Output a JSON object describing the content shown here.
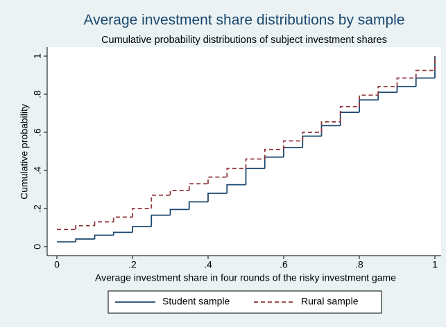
{
  "chart_data": {
    "type": "step",
    "title": "Average investment share distributions by sample",
    "subtitle": "Cumulative probability distributions of subject investment shares",
    "x_label": "Average investment share in four rounds of the risky investment game",
    "y_label": "Cumulative probability",
    "x": [
      0,
      0.05,
      0.1,
      0.15,
      0.2,
      0.25,
      0.3,
      0.35,
      0.4,
      0.45,
      0.5,
      0.55,
      0.6,
      0.65,
      0.7,
      0.75,
      0.8,
      0.85,
      0.9,
      0.95,
      1
    ],
    "series": [
      {
        "name": "Student sample",
        "color": "#1a476f",
        "dash": "solid",
        "values": [
          0.025,
          0.04,
          0.06,
          0.075,
          0.105,
          0.165,
          0.195,
          0.235,
          0.28,
          0.325,
          0.41,
          0.47,
          0.52,
          0.58,
          0.635,
          0.705,
          0.77,
          0.81,
          0.84,
          0.885,
          1
        ]
      },
      {
        "name": "Rural sample",
        "color": "#90353b",
        "dash": "dashed",
        "values": [
          0.09,
          0.11,
          0.13,
          0.155,
          0.2,
          0.27,
          0.295,
          0.33,
          0.365,
          0.41,
          0.46,
          0.51,
          0.555,
          0.6,
          0.655,
          0.735,
          0.795,
          0.84,
          0.885,
          0.925,
          1
        ]
      }
    ],
    "xlim": [
      0,
      1
    ],
    "ylim": [
      0,
      1
    ],
    "xticks": [
      0,
      {
        "value": 0.2,
        "label": ".2"
      },
      {
        "value": 0.4,
        "label": ".4"
      },
      {
        "value": 0.6,
        "label": ".6"
      },
      {
        "value": 0.8,
        "label": ".8"
      },
      1
    ],
    "yticks": [
      0,
      {
        "value": 0.2,
        "label": ".2"
      },
      {
        "value": 0.4,
        "label": ".4"
      },
      {
        "value": 0.6,
        "label": ".6"
      },
      {
        "value": 0.8,
        "label": ".8"
      },
      1
    ],
    "grid": false,
    "legend": "bottom"
  }
}
